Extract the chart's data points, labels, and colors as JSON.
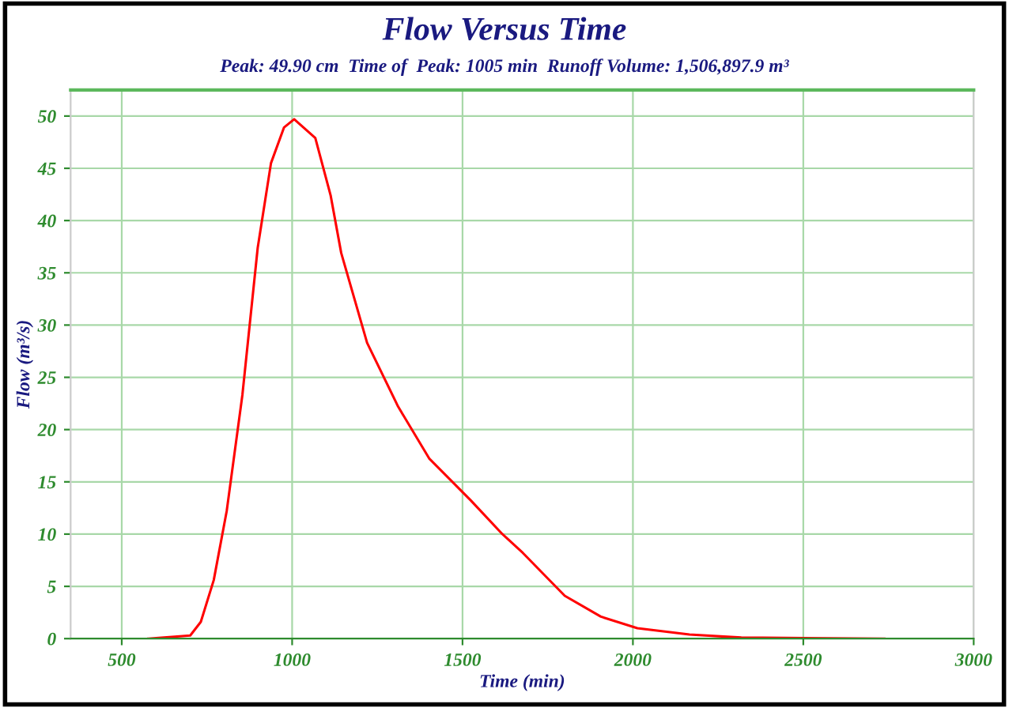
{
  "chart_data": {
    "type": "line",
    "title": "Flow Versus Time",
    "subtitle": "Peak: 49.90 cm  Time of  Peak: 1005 min  Runoff Volume: 1,506,897.9 m³",
    "xlabel": "Time (min)",
    "ylabel": "Flow (m³/s)",
    "series": [
      {
        "color": "#ff0000",
        "x": [
          578,
          701,
          732,
          770,
          808,
          854,
          899,
          938,
          976,
          1006,
          1068,
          1113,
          1144,
          1220,
          1311,
          1403,
          1525,
          1617,
          1677,
          1800,
          1906,
          2013,
          2166,
          2318,
          2738
        ],
        "values": [
          0,
          0.3,
          1.6,
          5.6,
          12.2,
          23.3,
          37.4,
          45.5,
          48.9,
          49.7,
          47.9,
          42.4,
          36.9,
          28.3,
          22.2,
          17.2,
          13.2,
          10,
          8.2,
          4.1,
          2.1,
          1.0,
          0.4,
          0.1,
          0
        ]
      }
    ],
    "xlim": [
      350,
      3000
    ],
    "ylim": [
      0,
      52.5
    ],
    "xticks": [
      500,
      1000,
      1500,
      2000,
      2500,
      3000
    ],
    "yticks": [
      0,
      5,
      10,
      15,
      20,
      25,
      30,
      35,
      40,
      45,
      50
    ],
    "grid": true,
    "marker": "none",
    "line_style": "solid"
  }
}
